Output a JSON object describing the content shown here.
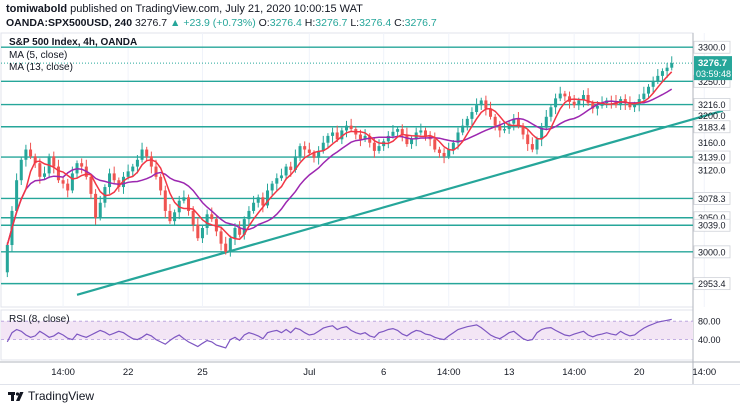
{
  "header": {
    "publisher": "tomiwabold",
    "published_text": "published on TradingView.com, July 21, 2020 10:00:15 WAT",
    "symbol": "OANDA:SPX500USD, 240",
    "ohlc_value": "3276.7",
    "change": "▲ +23.9 (+0.73%)",
    "o_label": "O:",
    "o_value": "3276.4",
    "h_label": "H:",
    "h_value": "3276.7",
    "l_label": "L:",
    "l_value": "3276.4",
    "c_label": "C:",
    "c_value": "3276.7"
  },
  "legend": {
    "title": "S&P 500 Index, 4h, OANDA",
    "ma5": "MA (5, close)",
    "ma13": "MA (13, close)",
    "rsi": "RSI (8, close)"
  },
  "price_axis": {
    "current_price": "3276.7",
    "countdown": "03:59:48",
    "level_labels": [
      "3300.0",
      "3250.0",
      "3216.0",
      "3183.4",
      "3139.0",
      "3078.3",
      "3050.0",
      "3039.0",
      "3000.0",
      "2953.4"
    ],
    "tick_labels": [
      "3200.0",
      "3160.0",
      "3120.0"
    ]
  },
  "rsi_axis": {
    "tick_labels": [
      "80.00",
      "40.00"
    ]
  },
  "time_axis": {
    "labels": [
      "14:00",
      "22",
      "25",
      "Jul",
      "6",
      "14:00",
      "13",
      "14:00",
      "20",
      "14:00"
    ]
  },
  "footer": {
    "brand": "TradingView"
  },
  "colors": {
    "up": "#26a69a",
    "down": "#ef5350",
    "ma5": "#f23645",
    "ma13": "#9c27b0",
    "level": "#26a69a",
    "rsi": "#7e57c2",
    "rsi_band": "#f3e5f5"
  },
  "chart_data": {
    "type": "candlestick",
    "title": "S&P 500 Index, 4h, OANDA",
    "yrange": [
      2925,
      3315
    ],
    "levels": [
      3300.0,
      3250.0,
      3216.0,
      3183.4,
      3139.0,
      3078.3,
      3050.0,
      3039.0,
      3000.0,
      2953.4
    ],
    "trendline": {
      "from": {
        "x": 15,
        "y": 2937
      },
      "to": {
        "x": 154,
        "y": 3207
      }
    },
    "rsi_range": [
      0,
      100
    ],
    "rsi_levels": [
      80,
      40
    ],
    "time_ticks": [
      {
        "x": 12,
        "label": "14:00"
      },
      {
        "x": 26,
        "label": "22"
      },
      {
        "x": 42,
        "label": "25"
      },
      {
        "x": 65,
        "label": "Jul"
      },
      {
        "x": 81,
        "label": "6"
      },
      {
        "x": 95,
        "label": "14:00"
      },
      {
        "x": 108,
        "label": "13"
      },
      {
        "x": 122,
        "label": "14:00"
      },
      {
        "x": 136,
        "label": "20"
      },
      {
        "x": 150,
        "label": "14:00"
      }
    ],
    "close": [
      3010,
      3060,
      3105,
      3135,
      3150,
      3140,
      3130,
      3110,
      3115,
      3140,
      3125,
      3105,
      3100,
      3090,
      3115,
      3130,
      3125,
      3110,
      3085,
      3050,
      3072,
      3095,
      3115,
      3105,
      3095,
      3110,
      3118,
      3125,
      3135,
      3150,
      3140,
      3125,
      3110,
      3090,
      3060,
      3045,
      3058,
      3075,
      3080,
      3060,
      3040,
      3020,
      3035,
      3055,
      3048,
      3030,
      3012,
      3000,
      3020,
      3035,
      3025,
      3048,
      3060,
      3072,
      3080,
      3068,
      3090,
      3100,
      3108,
      3112,
      3125,
      3120,
      3140,
      3155,
      3150,
      3145,
      3138,
      3148,
      3160,
      3170,
      3175,
      3165,
      3178,
      3185,
      3180,
      3172,
      3165,
      3170,
      3160,
      3148,
      3155,
      3162,
      3170,
      3176,
      3180,
      3172,
      3158,
      3165,
      3175,
      3178,
      3170,
      3165,
      3150,
      3145,
      3140,
      3150,
      3160,
      3175,
      3185,
      3195,
      3205,
      3215,
      3222,
      3210,
      3198,
      3185,
      3178,
      3180,
      3188,
      3195,
      3185,
      3172,
      3158,
      3150,
      3165,
      3182,
      3198,
      3212,
      3225,
      3232,
      3228,
      3220,
      3215,
      3222,
      3230,
      3218,
      3210,
      3214,
      3218,
      3222,
      3220,
      3215,
      3224,
      3218,
      3212,
      3216,
      3224,
      3232,
      3242,
      3250,
      3258,
      3265,
      3270,
      3276.7
    ],
    "rsi": [
      35,
      55,
      62,
      58,
      50,
      45,
      48,
      58,
      52,
      45,
      48,
      55,
      50,
      43,
      40,
      52,
      48,
      45,
      50,
      55,
      60,
      56,
      50,
      54,
      58,
      55,
      48,
      42,
      40,
      45,
      52,
      48,
      40,
      35,
      30,
      38,
      45,
      50,
      42,
      35,
      30,
      25,
      32,
      38,
      35,
      28,
      25,
      22,
      40,
      45,
      38,
      50,
      55,
      52,
      48,
      42,
      55,
      58,
      60,
      55,
      62,
      55,
      65,
      62,
      55,
      50,
      52,
      58,
      65,
      68,
      70,
      62,
      66,
      68,
      60,
      55,
      52,
      55,
      48,
      45,
      55,
      58,
      62,
      64,
      60,
      52,
      48,
      55,
      60,
      58,
      52,
      50,
      45,
      42,
      40,
      48,
      55,
      62,
      65,
      68,
      70,
      72,
      66,
      58,
      50,
      45,
      42,
      48,
      55,
      58,
      50,
      42,
      38,
      40,
      55,
      62,
      65,
      66,
      60,
      55,
      50,
      48,
      52,
      55,
      58,
      50,
      46,
      50,
      52,
      55,
      52,
      50,
      58,
      52,
      48,
      50,
      58,
      65,
      70,
      74,
      78,
      80,
      82,
      84
    ]
  }
}
